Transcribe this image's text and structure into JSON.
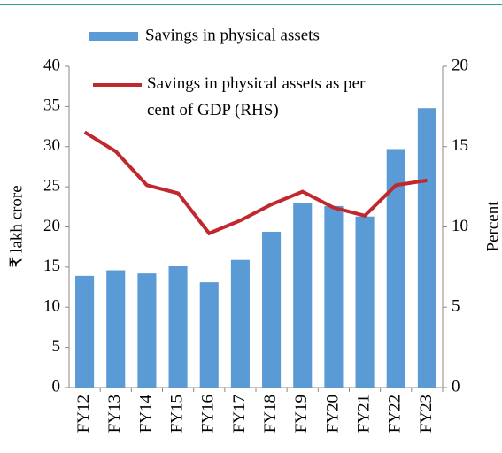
{
  "chart_data": {
    "type": "bar",
    "categories": [
      "FY12",
      "FY13",
      "FY14",
      "FY15",
      "FY16",
      "FY17",
      "FY18",
      "FY19",
      "FY20",
      "FY21",
      "FY22",
      "FY23"
    ],
    "ylabel": "₹ lakh crore",
    "y2label": "Percent",
    "ylim": [
      0,
      40
    ],
    "yticks": [
      0,
      5,
      10,
      15,
      20,
      25,
      30,
      35,
      40
    ],
    "y2lim": [
      0,
      20
    ],
    "y2ticks": [
      0,
      5,
      10,
      15,
      20
    ],
    "series": [
      {
        "name": "Savings in physical assets",
        "type": "bar",
        "color": "#5b9bd5",
        "values": [
          13.9,
          14.6,
          14.2,
          15.1,
          13.1,
          15.9,
          19.4,
          23.0,
          22.6,
          21.3,
          29.7,
          34.8
        ]
      },
      {
        "name": "Savings in physical assets as per cent of GDP (RHS)",
        "type": "line",
        "axis": "y2",
        "color": "#c0282d",
        "values": [
          15.9,
          14.7,
          12.6,
          12.1,
          9.6,
          10.4,
          11.4,
          12.2,
          11.2,
          10.7,
          12.6,
          12.9
        ]
      }
    ]
  }
}
